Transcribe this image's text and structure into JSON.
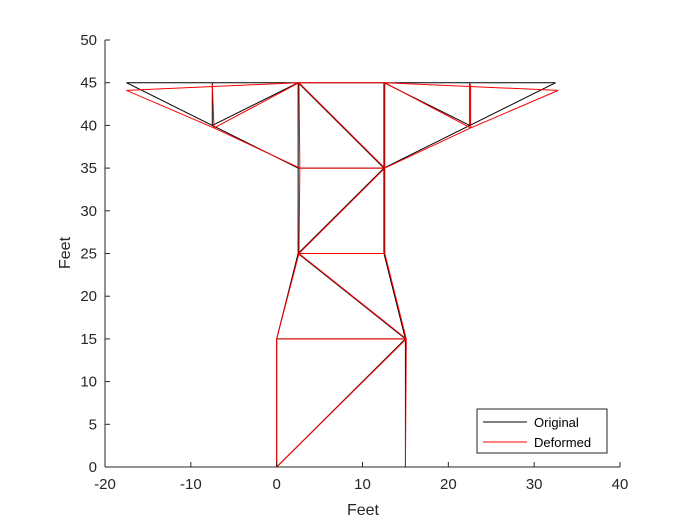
{
  "chart_data": {
    "type": "line",
    "title": "",
    "xlabel": "Feet",
    "ylabel": "Feet",
    "xlim": [
      -20,
      40
    ],
    "ylim": [
      0,
      50
    ],
    "xticks": [
      -20,
      -10,
      0,
      10,
      20,
      30,
      40
    ],
    "yticks": [
      0,
      5,
      10,
      15,
      20,
      25,
      30,
      35,
      40,
      45,
      50
    ],
    "grid": false,
    "legend_position": "bottom-right",
    "series": [
      {
        "name": "Original",
        "color": "#000000",
        "segments": [
          [
            [
              0,
              0
            ],
            [
              15,
              0
            ]
          ],
          [
            [
              0,
              0
            ],
            [
              0,
              15
            ]
          ],
          [
            [
              15,
              0
            ],
            [
              15,
              15
            ]
          ],
          [
            [
              0,
              0
            ],
            [
              15,
              15
            ]
          ],
          [
            [
              0,
              15
            ],
            [
              15,
              15
            ]
          ],
          [
            [
              0,
              15
            ],
            [
              2.5,
              25
            ]
          ],
          [
            [
              15,
              15
            ],
            [
              12.5,
              25
            ]
          ],
          [
            [
              2.5,
              25
            ],
            [
              15,
              15
            ]
          ],
          [
            [
              2.5,
              25
            ],
            [
              12.5,
              25
            ]
          ],
          [
            [
              2.5,
              25
            ],
            [
              2.5,
              35
            ]
          ],
          [
            [
              12.5,
              25
            ],
            [
              12.5,
              35
            ]
          ],
          [
            [
              2.5,
              25
            ],
            [
              12.5,
              35
            ]
          ],
          [
            [
              2.5,
              35
            ],
            [
              12.5,
              35
            ]
          ],
          [
            [
              2.5,
              35
            ],
            [
              2.5,
              45
            ]
          ],
          [
            [
              12.5,
              35
            ],
            [
              12.5,
              45
            ]
          ],
          [
            [
              2.5,
              45
            ],
            [
              12.5,
              35
            ]
          ],
          [
            [
              2.5,
              45
            ],
            [
              12.5,
              45
            ]
          ],
          [
            [
              -17.5,
              45
            ],
            [
              2.5,
              45
            ]
          ],
          [
            [
              12.5,
              45
            ],
            [
              32.5,
              45
            ]
          ],
          [
            [
              -17.5,
              45
            ],
            [
              -7.5,
              40
            ]
          ],
          [
            [
              -7.5,
              40
            ],
            [
              2.5,
              35
            ]
          ],
          [
            [
              -7.5,
              45
            ],
            [
              -7.5,
              40
            ]
          ],
          [
            [
              -7.5,
              40
            ],
            [
              2.5,
              45
            ]
          ],
          [
            [
              32.5,
              45
            ],
            [
              22.5,
              40
            ]
          ],
          [
            [
              22.5,
              40
            ],
            [
              12.5,
              35
            ]
          ],
          [
            [
              22.5,
              45
            ],
            [
              22.5,
              40
            ]
          ],
          [
            [
              22.5,
              40
            ],
            [
              12.5,
              45
            ]
          ]
        ]
      },
      {
        "name": "Deformed",
        "color": "#ff0000",
        "segments": [
          [
            [
              0,
              0
            ],
            [
              15,
              0
            ]
          ],
          [
            [
              0,
              0
            ],
            [
              0,
              15
            ]
          ],
          [
            [
              15,
              0
            ],
            [
              15.1,
              15
            ]
          ],
          [
            [
              0,
              0
            ],
            [
              15.1,
              15
            ]
          ],
          [
            [
              0,
              15
            ],
            [
              15.1,
              15
            ]
          ],
          [
            [
              0,
              15
            ],
            [
              2.6,
              25
            ]
          ],
          [
            [
              15.1,
              15
            ],
            [
              12.6,
              25
            ]
          ],
          [
            [
              2.6,
              25
            ],
            [
              15.1,
              15
            ]
          ],
          [
            [
              2.6,
              25
            ],
            [
              12.6,
              25
            ]
          ],
          [
            [
              2.6,
              25
            ],
            [
              2.7,
              35
            ]
          ],
          [
            [
              12.6,
              25
            ],
            [
              12.6,
              35
            ]
          ],
          [
            [
              2.6,
              25
            ],
            [
              12.6,
              35
            ]
          ],
          [
            [
              2.7,
              35
            ],
            [
              12.6,
              35
            ]
          ],
          [
            [
              2.7,
              35
            ],
            [
              2.6,
              45
            ]
          ],
          [
            [
              12.6,
              35
            ],
            [
              12.6,
              45
            ]
          ],
          [
            [
              2.6,
              45
            ],
            [
              12.6,
              35
            ]
          ],
          [
            [
              2.6,
              45
            ],
            [
              12.6,
              45
            ]
          ],
          [
            [
              -17.5,
              44.1
            ],
            [
              2.6,
              45
            ]
          ],
          [
            [
              12.6,
              45
            ],
            [
              32.8,
              44.1
            ]
          ],
          [
            [
              -17.5,
              44.1
            ],
            [
              -7.3,
              39.7
            ]
          ],
          [
            [
              -7.3,
              39.7
            ],
            [
              2.7,
              35
            ]
          ],
          [
            [
              -7.5,
              44.8
            ],
            [
              -7.3,
              39.7
            ]
          ],
          [
            [
              -7.3,
              39.7
            ],
            [
              2.6,
              45
            ]
          ],
          [
            [
              32.8,
              44.1
            ],
            [
              22.6,
              39.7
            ]
          ],
          [
            [
              22.6,
              39.7
            ],
            [
              12.6,
              35
            ]
          ],
          [
            [
              22.6,
              44.8
            ],
            [
              22.6,
              39.7
            ]
          ],
          [
            [
              22.6,
              39.7
            ],
            [
              12.6,
              45
            ]
          ]
        ]
      }
    ]
  }
}
